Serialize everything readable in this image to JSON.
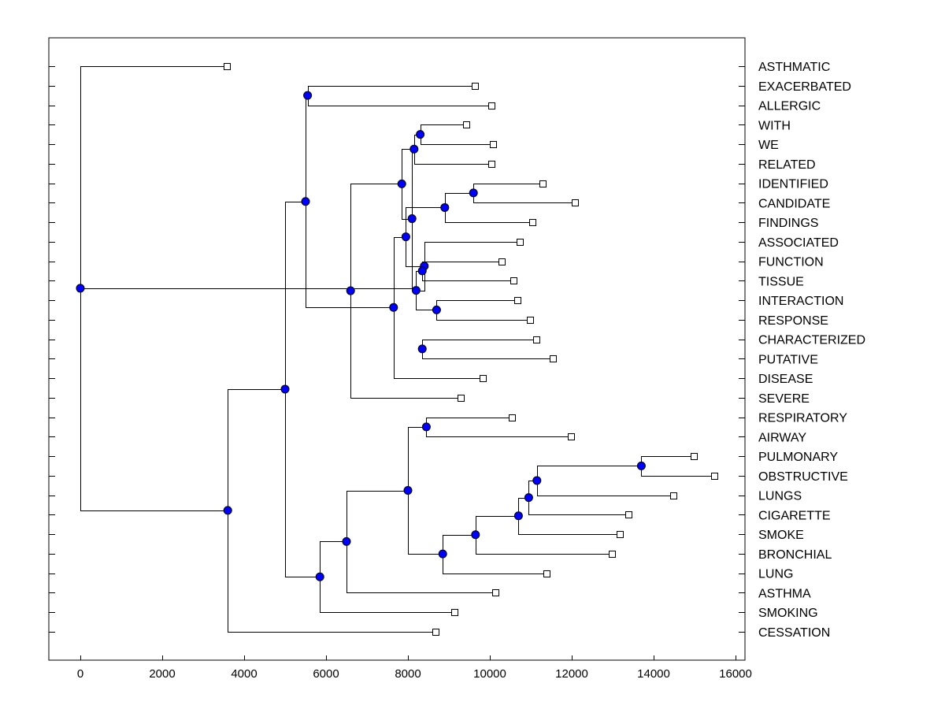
{
  "chart_data": {
    "type": "dendrogram",
    "title": "",
    "xlabel": "",
    "ylabel": "",
    "xlim": [
      -800,
      16200
    ],
    "x_ticks": [
      0,
      2000,
      4000,
      6000,
      8000,
      10000,
      12000,
      14000,
      16000
    ],
    "grid": false,
    "colors": {
      "node": "#0000ff",
      "leaf": "#ffffff",
      "line": "#000000"
    },
    "leaves": [
      {
        "label": "ASTHMATIC",
        "value": 3600
      },
      {
        "label": "EXACERBATED",
        "value": 9650
      },
      {
        "label": "ALLERGIC",
        "value": 10050
      },
      {
        "label": "WITH",
        "value": 9450
      },
      {
        "label": "WE",
        "value": 10100
      },
      {
        "label": "RELATED",
        "value": 10050
      },
      {
        "label": "IDENTIFIED",
        "value": 11300
      },
      {
        "label": "CANDIDATE",
        "value": 12100
      },
      {
        "label": "FINDINGS",
        "value": 11050
      },
      {
        "label": "ASSOCIATED",
        "value": 10750
      },
      {
        "label": "FUNCTION",
        "value": 10300
      },
      {
        "label": "TISSUE",
        "value": 10600
      },
      {
        "label": "INTERACTION",
        "value": 10700
      },
      {
        "label": "RESPONSE",
        "value": 11000
      },
      {
        "label": "CHARACTERIZED",
        "value": 11150
      },
      {
        "label": "PUTATIVE",
        "value": 11550
      },
      {
        "label": "DISEASE",
        "value": 9850
      },
      {
        "label": "SEVERE",
        "value": 9300
      },
      {
        "label": "RESPIRATORY",
        "value": 10550
      },
      {
        "label": "AIRWAY",
        "value": 12000
      },
      {
        "label": "PULMONARY",
        "value": 15000
      },
      {
        "label": "OBSTRUCTIVE",
        "value": 15500
      },
      {
        "label": "LUNGS",
        "value": 14500
      },
      {
        "label": "CIGARETTE",
        "value": 13400
      },
      {
        "label": "SMOKE",
        "value": 13200
      },
      {
        "label": "BRONCHIAL",
        "value": 13000
      },
      {
        "label": "LUNG",
        "value": 11400
      },
      {
        "label": "ASTHMA",
        "value": 10150
      },
      {
        "label": "SMOKING",
        "value": 9150
      },
      {
        "label": "CESSATION",
        "value": 8700
      }
    ],
    "merges": [
      {
        "value": 0,
        "children": [
          "ASTHMATIC",
          1
        ]
      },
      {
        "value": 3600,
        "children": [
          2,
          "CESSATION"
        ]
      },
      {
        "value": 5000,
        "children": [
          3,
          16
        ]
      },
      {
        "value": 5500,
        "children": [
          4,
          6
        ]
      },
      {
        "value": 5550,
        "children": [
          "EXACERBATED",
          "ALLERGIC"
        ]
      },
      {
        "value": 6600,
        "children": [
          7,
          "SEVERE"
        ]
      },
      {
        "value": 7650,
        "children": [
          8,
          "DISEASE"
        ]
      },
      {
        "value": 7850,
        "children": [
          9,
          13
        ]
      },
      {
        "value": 7950,
        "children": [
          10,
          11
        ]
      },
      {
        "value": 8150,
        "children": [
          14,
          "RELATED"
        ]
      },
      {
        "value": 8400,
        "children": [
          12,
          "ASSOCIATED"
        ]
      },
      {
        "value": 8900,
        "children": [
          15,
          "FINDINGS"
        ]
      },
      {
        "value": 8200,
        "children": [
          17,
          18
        ]
      },
      {
        "value": 8100,
        "children": [
          0,
          9
        ]
      },
      {
        "value": 8300,
        "children": [
          "WITH",
          "WE"
        ]
      },
      {
        "value": 9600,
        "children": [
          "IDENTIFIED",
          "CANDIDATE"
        ]
      },
      {
        "value": 5850,
        "children": [
          19,
          "SMOKING"
        ]
      },
      {
        "value": 8350,
        "children": [
          "FUNCTION",
          "TISSUE"
        ]
      },
      {
        "value": 8700,
        "children": [
          "INTERACTION",
          "RESPONSE"
        ]
      },
      {
        "value": 6500,
        "children": [
          20,
          "ASTHMA"
        ]
      },
      {
        "value": 8000,
        "children": [
          21,
          22
        ]
      },
      {
        "value": 8450,
        "children": [
          "RESPIRATORY",
          "AIRWAY"
        ]
      },
      {
        "value": 8850,
        "children": [
          23,
          "LUNG"
        ]
      },
      {
        "value": 9650,
        "children": [
          24,
          "BRONCHIAL"
        ]
      },
      {
        "value": 10700,
        "children": [
          25,
          "SMOKE"
        ]
      },
      {
        "value": 10950,
        "children": [
          26,
          "CIGARETTE"
        ]
      },
      {
        "value": 11150,
        "children": [
          27,
          "LUNGS"
        ]
      },
      {
        "value": 13700,
        "children": [
          "PULMONARY",
          "OBSTRUCTIVE"
        ]
      },
      {
        "value": 8350,
        "children": [
          "CHARACTERIZED",
          "PUTATIVE"
        ]
      }
    ]
  }
}
